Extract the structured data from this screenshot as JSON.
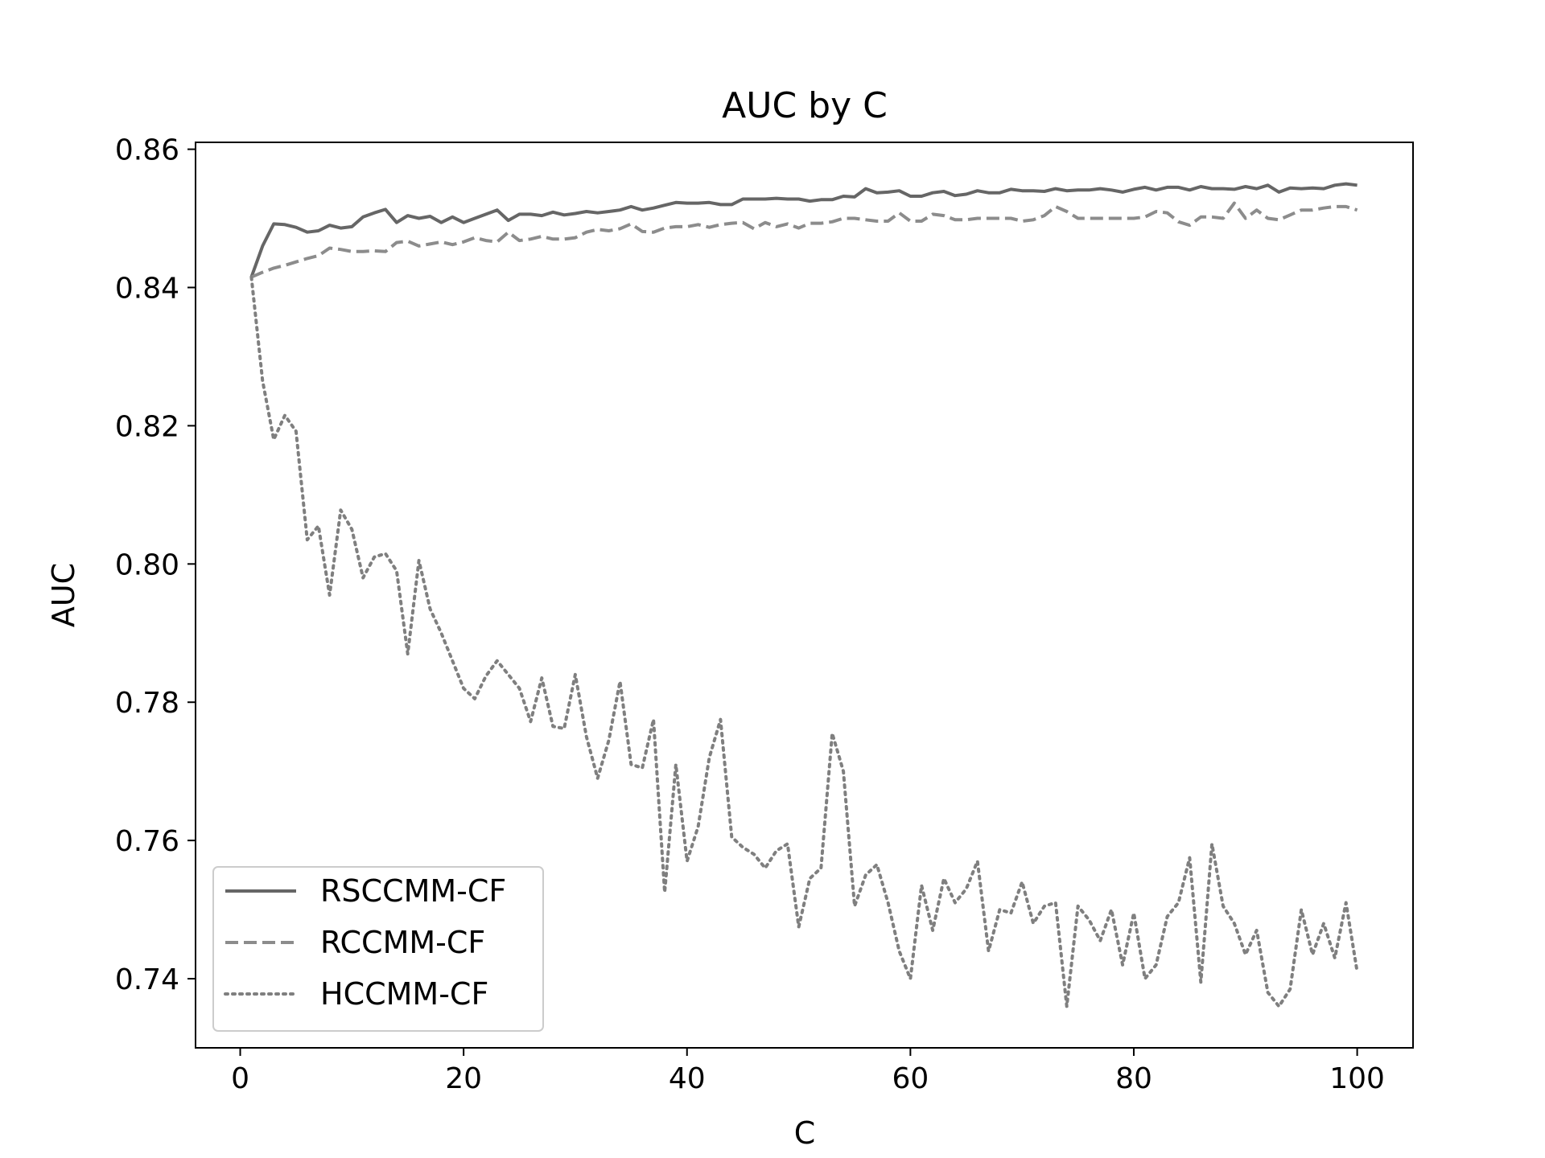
{
  "chart_data": {
    "type": "line",
    "title": "AUC by C",
    "xlabel": "C",
    "ylabel": "AUC",
    "xlim": [
      -4,
      105
    ],
    "ylim": [
      0.73,
      0.861
    ],
    "xticks": [
      0,
      20,
      40,
      60,
      80,
      100
    ],
    "yticks": [
      0.74,
      0.76,
      0.78,
      0.8,
      0.82,
      0.84,
      0.86
    ],
    "xtick_labels": [
      "0",
      "20",
      "40",
      "60",
      "80",
      "100"
    ],
    "ytick_labels": [
      "0.74",
      "0.76",
      "0.78",
      "0.80",
      "0.82",
      "0.84",
      "0.86"
    ],
    "grid": false,
    "legend_position": "bottom-left",
    "series": [
      {
        "name": "RSCCMM-CF",
        "style": "solid",
        "color": "#666666",
        "x": [
          1,
          2,
          3,
          4,
          5,
          6,
          7,
          8,
          9,
          10,
          11,
          12,
          13,
          14,
          15,
          16,
          17,
          18,
          19,
          20,
          21,
          22,
          23,
          24,
          25,
          26,
          27,
          28,
          29,
          30,
          31,
          32,
          33,
          34,
          35,
          36,
          37,
          38,
          39,
          40,
          41,
          42,
          43,
          44,
          45,
          46,
          47,
          48,
          49,
          50,
          51,
          52,
          53,
          54,
          55,
          56,
          57,
          58,
          59,
          60,
          61,
          62,
          63,
          64,
          65,
          66,
          67,
          68,
          69,
          70,
          71,
          72,
          73,
          74,
          75,
          76,
          77,
          78,
          79,
          80,
          81,
          82,
          83,
          84,
          85,
          86,
          87,
          88,
          89,
          90,
          91,
          92,
          93,
          94,
          95,
          96,
          97,
          98,
          99,
          100
        ],
        "values": [
          0.8415,
          0.846,
          0.8492,
          0.8491,
          0.8487,
          0.848,
          0.8482,
          0.849,
          0.8486,
          0.8488,
          0.8502,
          0.8508,
          0.8513,
          0.8494,
          0.8504,
          0.85,
          0.8503,
          0.8494,
          0.8502,
          0.8494,
          0.85,
          0.8506,
          0.8512,
          0.8497,
          0.8506,
          0.8506,
          0.8504,
          0.8509,
          0.8505,
          0.8507,
          0.851,
          0.8508,
          0.851,
          0.8512,
          0.8517,
          0.8512,
          0.8515,
          0.8519,
          0.8523,
          0.8522,
          0.8522,
          0.8523,
          0.852,
          0.852,
          0.8528,
          0.8528,
          0.8528,
          0.8529,
          0.8528,
          0.8528,
          0.8525,
          0.8527,
          0.8527,
          0.8532,
          0.8531,
          0.8543,
          0.8537,
          0.8538,
          0.854,
          0.8532,
          0.8532,
          0.8537,
          0.8539,
          0.8533,
          0.8535,
          0.854,
          0.8537,
          0.8537,
          0.8542,
          0.854,
          0.854,
          0.8539,
          0.8543,
          0.854,
          0.8541,
          0.8541,
          0.8543,
          0.8541,
          0.8538,
          0.8542,
          0.8545,
          0.8541,
          0.8545,
          0.8545,
          0.8541,
          0.8546,
          0.8543,
          0.8543,
          0.8542,
          0.8546,
          0.8543,
          0.8548,
          0.8538,
          0.8544,
          0.8543,
          0.8544,
          0.8543,
          0.8548,
          0.855,
          0.8548
        ]
      },
      {
        "name": "RCCMM-CF",
        "style": "dashed",
        "color": "#8c8c8c",
        "x": [
          1,
          2,
          3,
          4,
          5,
          6,
          7,
          8,
          9,
          10,
          11,
          12,
          13,
          14,
          15,
          16,
          17,
          18,
          19,
          20,
          21,
          22,
          23,
          24,
          25,
          26,
          27,
          28,
          29,
          30,
          31,
          32,
          33,
          34,
          35,
          36,
          37,
          38,
          39,
          40,
          41,
          42,
          43,
          44,
          45,
          46,
          47,
          48,
          49,
          50,
          51,
          52,
          53,
          54,
          55,
          56,
          57,
          58,
          59,
          60,
          61,
          62,
          63,
          64,
          65,
          66,
          67,
          68,
          69,
          70,
          71,
          72,
          73,
          74,
          75,
          76,
          77,
          78,
          79,
          80,
          81,
          82,
          83,
          84,
          85,
          86,
          87,
          88,
          89,
          90,
          91,
          92,
          93,
          94,
          95,
          96,
          97,
          98,
          99,
          100
        ],
        "values": [
          0.8415,
          0.8422,
          0.8428,
          0.8432,
          0.8437,
          0.8442,
          0.8446,
          0.8457,
          0.8455,
          0.8452,
          0.8452,
          0.8453,
          0.8452,
          0.8465,
          0.8467,
          0.846,
          0.8463,
          0.8466,
          0.8462,
          0.8466,
          0.8472,
          0.8468,
          0.8466,
          0.848,
          0.8468,
          0.847,
          0.8474,
          0.847,
          0.847,
          0.8472,
          0.848,
          0.8484,
          0.8482,
          0.8485,
          0.8492,
          0.8481,
          0.848,
          0.8486,
          0.8488,
          0.8488,
          0.8491,
          0.8487,
          0.8491,
          0.8493,
          0.8494,
          0.8485,
          0.8494,
          0.8488,
          0.8492,
          0.8486,
          0.8493,
          0.8493,
          0.8495,
          0.85,
          0.85,
          0.8498,
          0.8496,
          0.8496,
          0.8508,
          0.8496,
          0.8496,
          0.8506,
          0.8504,
          0.8498,
          0.8498,
          0.85,
          0.85,
          0.85,
          0.85,
          0.8496,
          0.8498,
          0.8504,
          0.8517,
          0.851,
          0.85,
          0.85,
          0.85,
          0.85,
          0.85,
          0.85,
          0.8502,
          0.851,
          0.8508,
          0.8495,
          0.849,
          0.8502,
          0.8502,
          0.85,
          0.8522,
          0.85,
          0.8512,
          0.85,
          0.8498,
          0.8505,
          0.8512,
          0.8512,
          0.8515,
          0.8517,
          0.8517,
          0.8512
        ]
      },
      {
        "name": "HCCMM-CF",
        "style": "dotted",
        "color": "#7f7f7f",
        "x": [
          1,
          2,
          3,
          4,
          5,
          6,
          7,
          8,
          9,
          10,
          11,
          12,
          13,
          14,
          15,
          16,
          17,
          18,
          19,
          20,
          21,
          22,
          23,
          24,
          25,
          26,
          27,
          28,
          29,
          30,
          31,
          32,
          33,
          34,
          35,
          36,
          37,
          38,
          39,
          40,
          41,
          42,
          43,
          44,
          45,
          46,
          47,
          48,
          49,
          50,
          51,
          52,
          53,
          54,
          55,
          56,
          57,
          58,
          59,
          60,
          61,
          62,
          63,
          64,
          65,
          66,
          67,
          68,
          69,
          70,
          71,
          72,
          73,
          74,
          75,
          76,
          77,
          78,
          79,
          80,
          81,
          82,
          83,
          84,
          85,
          86,
          87,
          88,
          89,
          90,
          91,
          92,
          93,
          94,
          95,
          96,
          97,
          98,
          99,
          100
        ],
        "values": [
          0.8415,
          0.8265,
          0.818,
          0.8215,
          0.8192,
          0.8035,
          0.8055,
          0.7955,
          0.8078,
          0.805,
          0.798,
          0.801,
          0.8015,
          0.799,
          0.787,
          0.8005,
          0.7935,
          0.79,
          0.786,
          0.782,
          0.7805,
          0.7838,
          0.786,
          0.784,
          0.782,
          0.7772,
          0.7835,
          0.7765,
          0.7762,
          0.784,
          0.775,
          0.769,
          0.7745,
          0.783,
          0.771,
          0.7705,
          0.7775,
          0.7525,
          0.771,
          0.757,
          0.762,
          0.772,
          0.7775,
          0.7605,
          0.759,
          0.758,
          0.756,
          0.7585,
          0.7595,
          0.7475,
          0.7545,
          0.756,
          0.7755,
          0.77,
          0.7505,
          0.755,
          0.7565,
          0.751,
          0.744,
          0.74,
          0.7535,
          0.747,
          0.7545,
          0.751,
          0.753,
          0.757,
          0.744,
          0.75,
          0.7495,
          0.754,
          0.748,
          0.7505,
          0.751,
          0.736,
          0.7505,
          0.7485,
          0.7455,
          0.75,
          0.742,
          0.7495,
          0.74,
          0.742,
          0.749,
          0.751,
          0.7575,
          0.7395,
          0.7595,
          0.7505,
          0.748,
          0.7435,
          0.747,
          0.738,
          0.736,
          0.7385,
          0.75,
          0.7435,
          0.748,
          0.743,
          0.751,
          0.741
        ]
      }
    ]
  }
}
